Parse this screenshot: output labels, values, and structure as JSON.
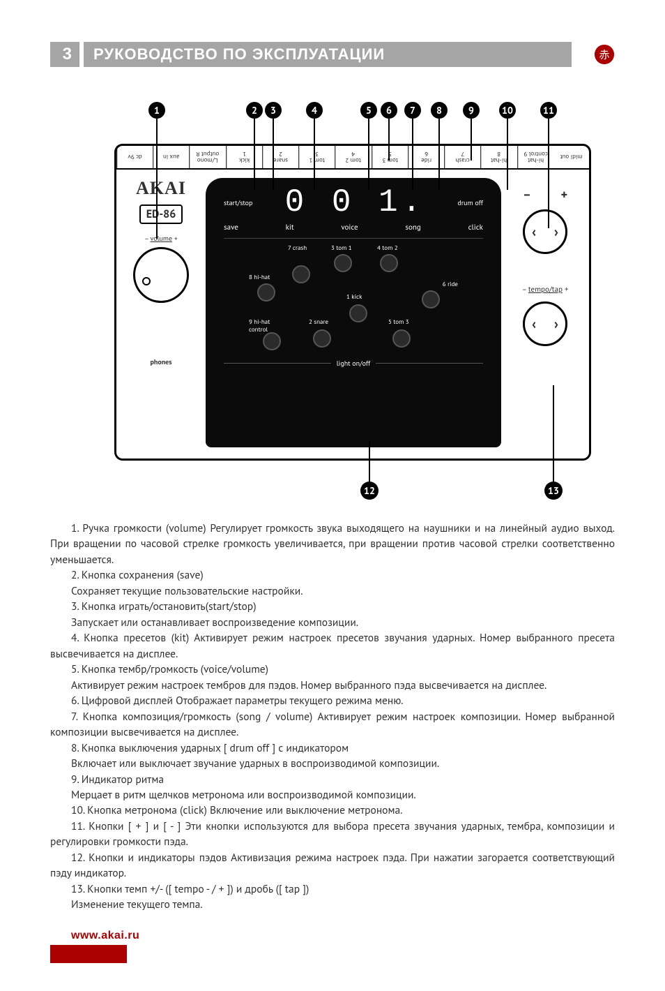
{
  "header": {
    "page_num": "3",
    "title": "РУКОВОДСТВО ПО ЭКСПЛУАТАЦИИ",
    "logo_glyph": "赤",
    "bar_color": "#a5a5a5",
    "logo_color": "#aa0000"
  },
  "diagram": {
    "brand": "AKAI",
    "model": "ED-86",
    "volume_label": "volume",
    "vol_minus": "–",
    "vol_plus": "+",
    "phones_label": "phones",
    "display_value": "0 0 1.",
    "row1_left": "start/stop",
    "row1_right": "drum off",
    "row2": {
      "save": "save",
      "kit": "kit",
      "voice": "voice",
      "song": "song",
      "click": "click"
    },
    "pads": {
      "k": "1 kick",
      "s": "2 snare",
      "t1": "3 tom 1",
      "t2": "4 tom 2",
      "t3": "5 tom 3",
      "r": "6 ride",
      "c": "7 crash",
      "hh": "8 hi-hat",
      "hhc": "9 hi-hat\ncontrol"
    },
    "light": "light on/off",
    "tempo_label": "tempo/tap",
    "plus": "+",
    "minus": "–",
    "top_jacks": [
      "dc 9v",
      "aux in",
      "L/mono\noutput R",
      "kick\n1",
      "snare\n2",
      "tom 1\n3",
      "tom 2\n4",
      "tom 3\n5",
      "ride\n6",
      "crash\n7",
      "hi-hat\n8",
      "hi-hat\ncontrol 9",
      "midi out"
    ],
    "callouts_top": [
      "1",
      "2",
      "3",
      "4",
      "5",
      "6",
      "7",
      "8",
      "9",
      "10",
      "11"
    ],
    "callouts_top_x": [
      153,
      293,
      320,
      379,
      457,
      486,
      520,
      558,
      604,
      656,
      715
    ],
    "callouts_top_linelen": [
      172,
      102,
      102,
      102,
      102,
      60,
      102,
      102,
      60,
      102,
      157
    ],
    "callouts_bottom": [
      "12",
      "13"
    ],
    "callouts_bottom_x": [
      458,
      722
    ],
    "callouts_bottom_linelen": [
      58,
      138
    ]
  },
  "paragraphs": [
    "1. Ручка громкости (volume) Регулирует громкость звука выходящего на наушники и на линейный аудио выход. При вращении по часовой стрелке громкость увеличивается, при вращении против часовой стрелки соответственно уменьшается.",
    "2. Кнопка сохранения (save)",
    "Сохраняет текущие пользовательские настройки.",
    "3. Кнопка играть/остановить(start/stop)",
    "Запускает или останавливает воспроизведение композиции.",
    "4. Кнопка пресетов (kit) Активирует режим настроек пресетов звучания ударных. Номер выбранного пресета высвечивается на дисплее.",
    "5. Кнопка тембр/громкость (voice/volume)",
    "Активирует режим настроек тембров для пэдов. Номер выбранного пэда высвечивается на дисплее.",
    "6. Цифровой дисплей Отображает параметры текущего режима меню.",
    "7. Кнопка композиция/громкость (song / volume) Активирует режим настроек композиции. Номер выбранной композиции высвечивается на дисплее.",
    "8. Кнопка выключения ударных [ drum off ] с индикатором",
    "Включает или выключает звучание ударных в воспроизводимой композиции.",
    "9. Индикатор ритма",
    "Мерцает в ритм щелчков метронома или воспроизводимой композиции.",
    "10. Кнопка метронома (click) Включение или выключение метронома.",
    "11. Кнопки [ + ] и [ - ] Эти кнопки используются для выбора пресета звучания ударных, тембра, композиции и регулировки громкости пэда.",
    "12. Кнопки и индикаторы пэдов Активизация режима настроек пэда. При нажатии загорается соответствующий пэду индикатор.",
    "13. Кнопки темп +/- ([ tempo - / + ]) и дробь ([ tap ])",
    "Изменение текущего темпа."
  ],
  "footer": {
    "url": "www.akai.ru",
    "color": "#aa0000"
  }
}
